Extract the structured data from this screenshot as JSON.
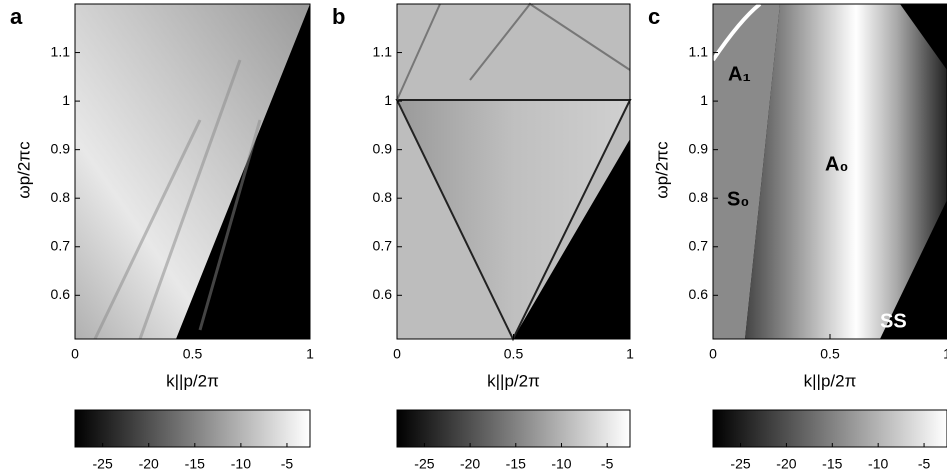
{
  "chart_data": [
    {
      "type": "heatmap",
      "panel_label": "a",
      "xlabel": "k||p/2π",
      "ylabel": "ωp/2πc",
      "xlim": [
        0,
        1
      ],
      "xticks": [
        0,
        0.5,
        1
      ],
      "ylim": [
        0.51,
        1.2
      ],
      "yticks": [
        0.6,
        0.7,
        0.8,
        0.9,
        1,
        1.1
      ],
      "clim": [
        -28,
        -2.5
      ],
      "cticks": [
        -25,
        -20,
        -15,
        -10,
        -5
      ]
    },
    {
      "type": "heatmap",
      "panel_label": "b",
      "xlabel": "k||p/2π",
      "ylabel": null,
      "xlim": [
        0,
        1
      ],
      "xticks": [
        0,
        0.5,
        1
      ],
      "ylim": [
        0.51,
        1.2
      ],
      "yticks": [
        0.6,
        0.7,
        0.8,
        0.9,
        1,
        1.1
      ],
      "clim": [
        -28,
        -2.5
      ],
      "cticks": [
        -25,
        -20,
        -15,
        -10,
        -5
      ]
    },
    {
      "type": "heatmap",
      "panel_label": "c",
      "xlabel": "k||p/2π",
      "ylabel": "ωp/2πc",
      "xlim": [
        0,
        1
      ],
      "xticks": [
        0,
        0.5,
        1
      ],
      "ylim": [
        0.51,
        1.2
      ],
      "yticks": [
        0.6,
        0.7,
        0.8,
        0.9,
        1,
        1.1
      ],
      "clim": [
        -28,
        -2.5
      ],
      "cticks": [
        -25,
        -20,
        -15,
        -10,
        -5
      ],
      "annotations": [
        "A₁",
        "S₀",
        "A₀",
        "SS"
      ]
    }
  ]
}
